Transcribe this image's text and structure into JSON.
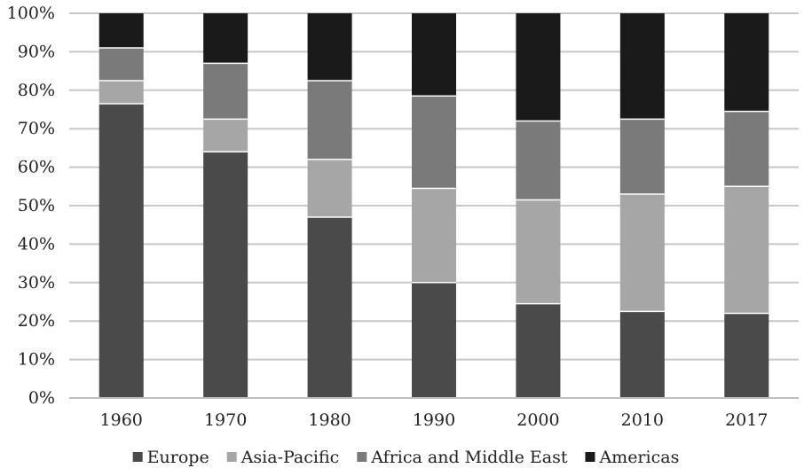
{
  "chart_data": {
    "type": "bar",
    "stacked": true,
    "normalized": true,
    "title": "",
    "xlabel": "",
    "ylabel": "",
    "ylim": [
      0,
      100
    ],
    "y_tick_step": 10,
    "y_tick_labels": [
      "0%",
      "10%",
      "20%",
      "30%",
      "40%",
      "50%",
      "60%",
      "70%",
      "80%",
      "90%",
      "100%"
    ],
    "grid": true,
    "legend_position": "bottom",
    "categories": [
      "1960",
      "1970",
      "1980",
      "1990",
      "2000",
      "2010",
      "2017"
    ],
    "series": [
      {
        "name": "Europe",
        "color": "#4a4a4a",
        "values": [
          76.5,
          64,
          47,
          30,
          24.5,
          22.5,
          22
        ]
      },
      {
        "name": "Asia-Pacific",
        "color": "#a6a6a6",
        "values": [
          6,
          8.5,
          15,
          24.5,
          27,
          30.5,
          33
        ]
      },
      {
        "name": "Africa and Middle East",
        "color": "#7a7a7a",
        "values": [
          8.5,
          14.5,
          20.5,
          24,
          20.5,
          19.5,
          19.5
        ]
      },
      {
        "name": "Americas",
        "color": "#1a1a1a",
        "values": [
          9,
          13,
          17.5,
          21.5,
          28,
          27.5,
          25.5
        ]
      }
    ]
  }
}
